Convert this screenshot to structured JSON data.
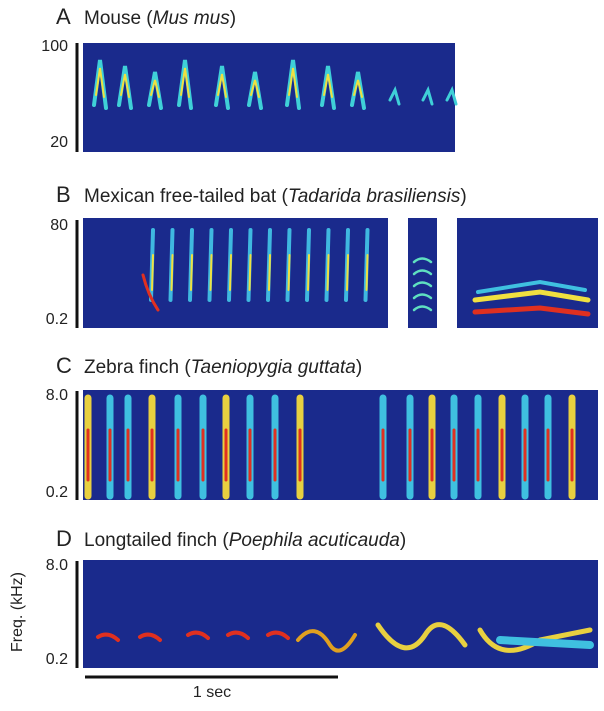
{
  "panels": [
    {
      "letter": "A",
      "prefix": "Mouse (",
      "species": "Mus mus",
      "suffix": ")",
      "ytop": "100",
      "ybottom": "20"
    },
    {
      "letter": "B",
      "prefix": "Mexican free-tailed bat (",
      "species": "Tadarida brasiliensis",
      "suffix": ")",
      "ytop": "80",
      "ybottom": "0.2"
    },
    {
      "letter": "C",
      "prefix": "Zebra finch (",
      "species": "Taeniopygia guttata",
      "suffix": ")",
      "ytop": "8.0",
      "ybottom": "0.2"
    },
    {
      "letter": "D",
      "prefix": "Longtailed finch (",
      "species": "Poephila acuticauda",
      "suffix": ")",
      "ytop": "8.0",
      "ybottom": "0.2"
    }
  ],
  "y_label": "Freq. (kHz)",
  "scale_bar": "1 sec"
}
